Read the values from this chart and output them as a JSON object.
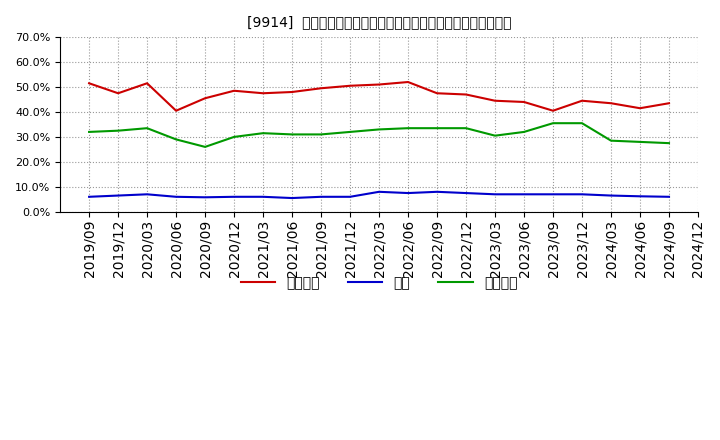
{
  "title": "[9914]  売上債権、在庫、買入債務の総資産に対する比率の推移",
  "x_labels": [
    "2019/09",
    "2019/12",
    "2020/03",
    "2020/06",
    "2020/09",
    "2020/12",
    "2021/03",
    "2021/06",
    "2021/09",
    "2021/12",
    "2022/03",
    "2022/06",
    "2022/09",
    "2022/12",
    "2023/03",
    "2023/06",
    "2023/09",
    "2023/12",
    "2024/03",
    "2024/06",
    "2024/09",
    "2024/12"
  ],
  "売上債権": [
    51.5,
    47.5,
    51.5,
    40.5,
    45.5,
    48.5,
    47.5,
    48.0,
    49.5,
    50.5,
    51.0,
    52.0,
    47.5,
    47.0,
    44.5,
    44.0,
    40.5,
    44.5,
    43.5,
    41.5,
    43.5,
    null
  ],
  "在庫": [
    6.0,
    6.5,
    7.0,
    6.0,
    5.8,
    6.0,
    6.0,
    5.5,
    6.0,
    6.0,
    8.0,
    7.5,
    8.0,
    7.5,
    7.0,
    7.0,
    7.0,
    7.0,
    6.5,
    6.2,
    6.0,
    null
  ],
  "買入債務": [
    32.0,
    32.5,
    33.5,
    29.0,
    26.0,
    30.0,
    31.5,
    31.0,
    31.0,
    32.0,
    33.0,
    33.5,
    33.5,
    33.5,
    30.5,
    32.0,
    35.5,
    35.5,
    28.5,
    28.0,
    27.5,
    null
  ],
  "line_colors": {
    "売上債権": "#cc0000",
    "在庫": "#0000cc",
    "買入債務": "#009900"
  },
  "ylim": [
    0.0,
    70.0
  ],
  "yticks": [
    0.0,
    10.0,
    20.0,
    30.0,
    40.0,
    50.0,
    60.0,
    70.0
  ],
  "background_color": "#ffffff",
  "plot_bg_color": "#ffffff",
  "grid_color": "#999999",
  "legend_labels": [
    "売上債権",
    "在庫",
    "買入債務"
  ]
}
